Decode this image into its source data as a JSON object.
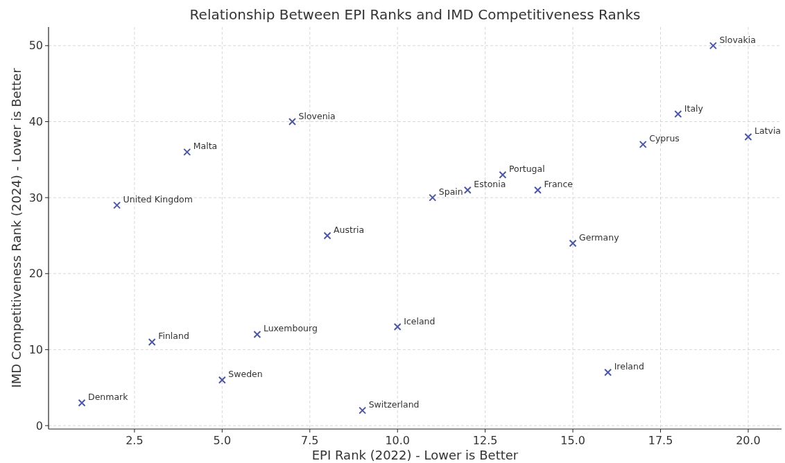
{
  "chart_data": {
    "type": "scatter",
    "title": "Relationship Between EPI Ranks and IMD Competitiveness Ranks",
    "xlabel": "EPI Rank (2022) - Lower is Better",
    "ylabel": "IMD Competitiveness Rank (2024) - Lower is Better",
    "x": [
      1,
      2,
      3,
      4,
      5,
      6,
      7,
      8,
      9,
      10,
      11,
      12,
      13,
      14,
      15,
      16,
      17,
      18,
      19,
      20
    ],
    "series": [
      {
        "color": "#4b56a5",
        "values": [
          3,
          29,
          11,
          36,
          6,
          12,
          40,
          25,
          2,
          13,
          30,
          31,
          33,
          31,
          24,
          7,
          37,
          41,
          50,
          38
        ]
      }
    ],
    "annotations": [
      {
        "text": "Denmark",
        "x": 1,
        "y": 3
      },
      {
        "text": "United Kingdom",
        "x": 2,
        "y": 29
      },
      {
        "text": "Finland",
        "x": 3,
        "y": 11
      },
      {
        "text": "Malta",
        "x": 4,
        "y": 36
      },
      {
        "text": "Sweden",
        "x": 5,
        "y": 6
      },
      {
        "text": "Luxembourg",
        "x": 6,
        "y": 12
      },
      {
        "text": "Slovenia",
        "x": 7,
        "y": 40
      },
      {
        "text": "Austria",
        "x": 8,
        "y": 25
      },
      {
        "text": "Switzerland",
        "x": 9,
        "y": 2
      },
      {
        "text": "Iceland",
        "x": 10,
        "y": 13
      },
      {
        "text": "Spain",
        "x": 11,
        "y": 30
      },
      {
        "text": "Estonia",
        "x": 12,
        "y": 31
      },
      {
        "text": "Portugal",
        "x": 13,
        "y": 33
      },
      {
        "text": "France",
        "x": 14,
        "y": 31
      },
      {
        "text": "Germany",
        "x": 15,
        "y": 24
      },
      {
        "text": "Ireland",
        "x": 16,
        "y": 7
      },
      {
        "text": "Cyprus",
        "x": 17,
        "y": 37
      },
      {
        "text": "Italy",
        "x": 18,
        "y": 41
      },
      {
        "text": "Slovakia",
        "x": 19,
        "y": 50
      },
      {
        "text": "Latvia",
        "x": 20,
        "y": 38
      }
    ],
    "xlim": [
      0.05,
      20.95
    ],
    "ylim": [
      -0.45,
      52.45
    ],
    "xticks": [
      {
        "value": 2.5,
        "label": "2.5"
      },
      {
        "value": 5,
        "label": "5.0"
      },
      {
        "value": 7.5,
        "label": "7.5"
      },
      {
        "value": 10,
        "label": "10.0"
      },
      {
        "value": 12.5,
        "label": "12.5"
      },
      {
        "value": 15,
        "label": "15.0"
      },
      {
        "value": 17.5,
        "label": "17.5"
      },
      {
        "value": 20,
        "label": "20.0"
      }
    ],
    "yticks": [
      0,
      10,
      20,
      30,
      40,
      50
    ],
    "grid": true,
    "marker": "cross"
  }
}
